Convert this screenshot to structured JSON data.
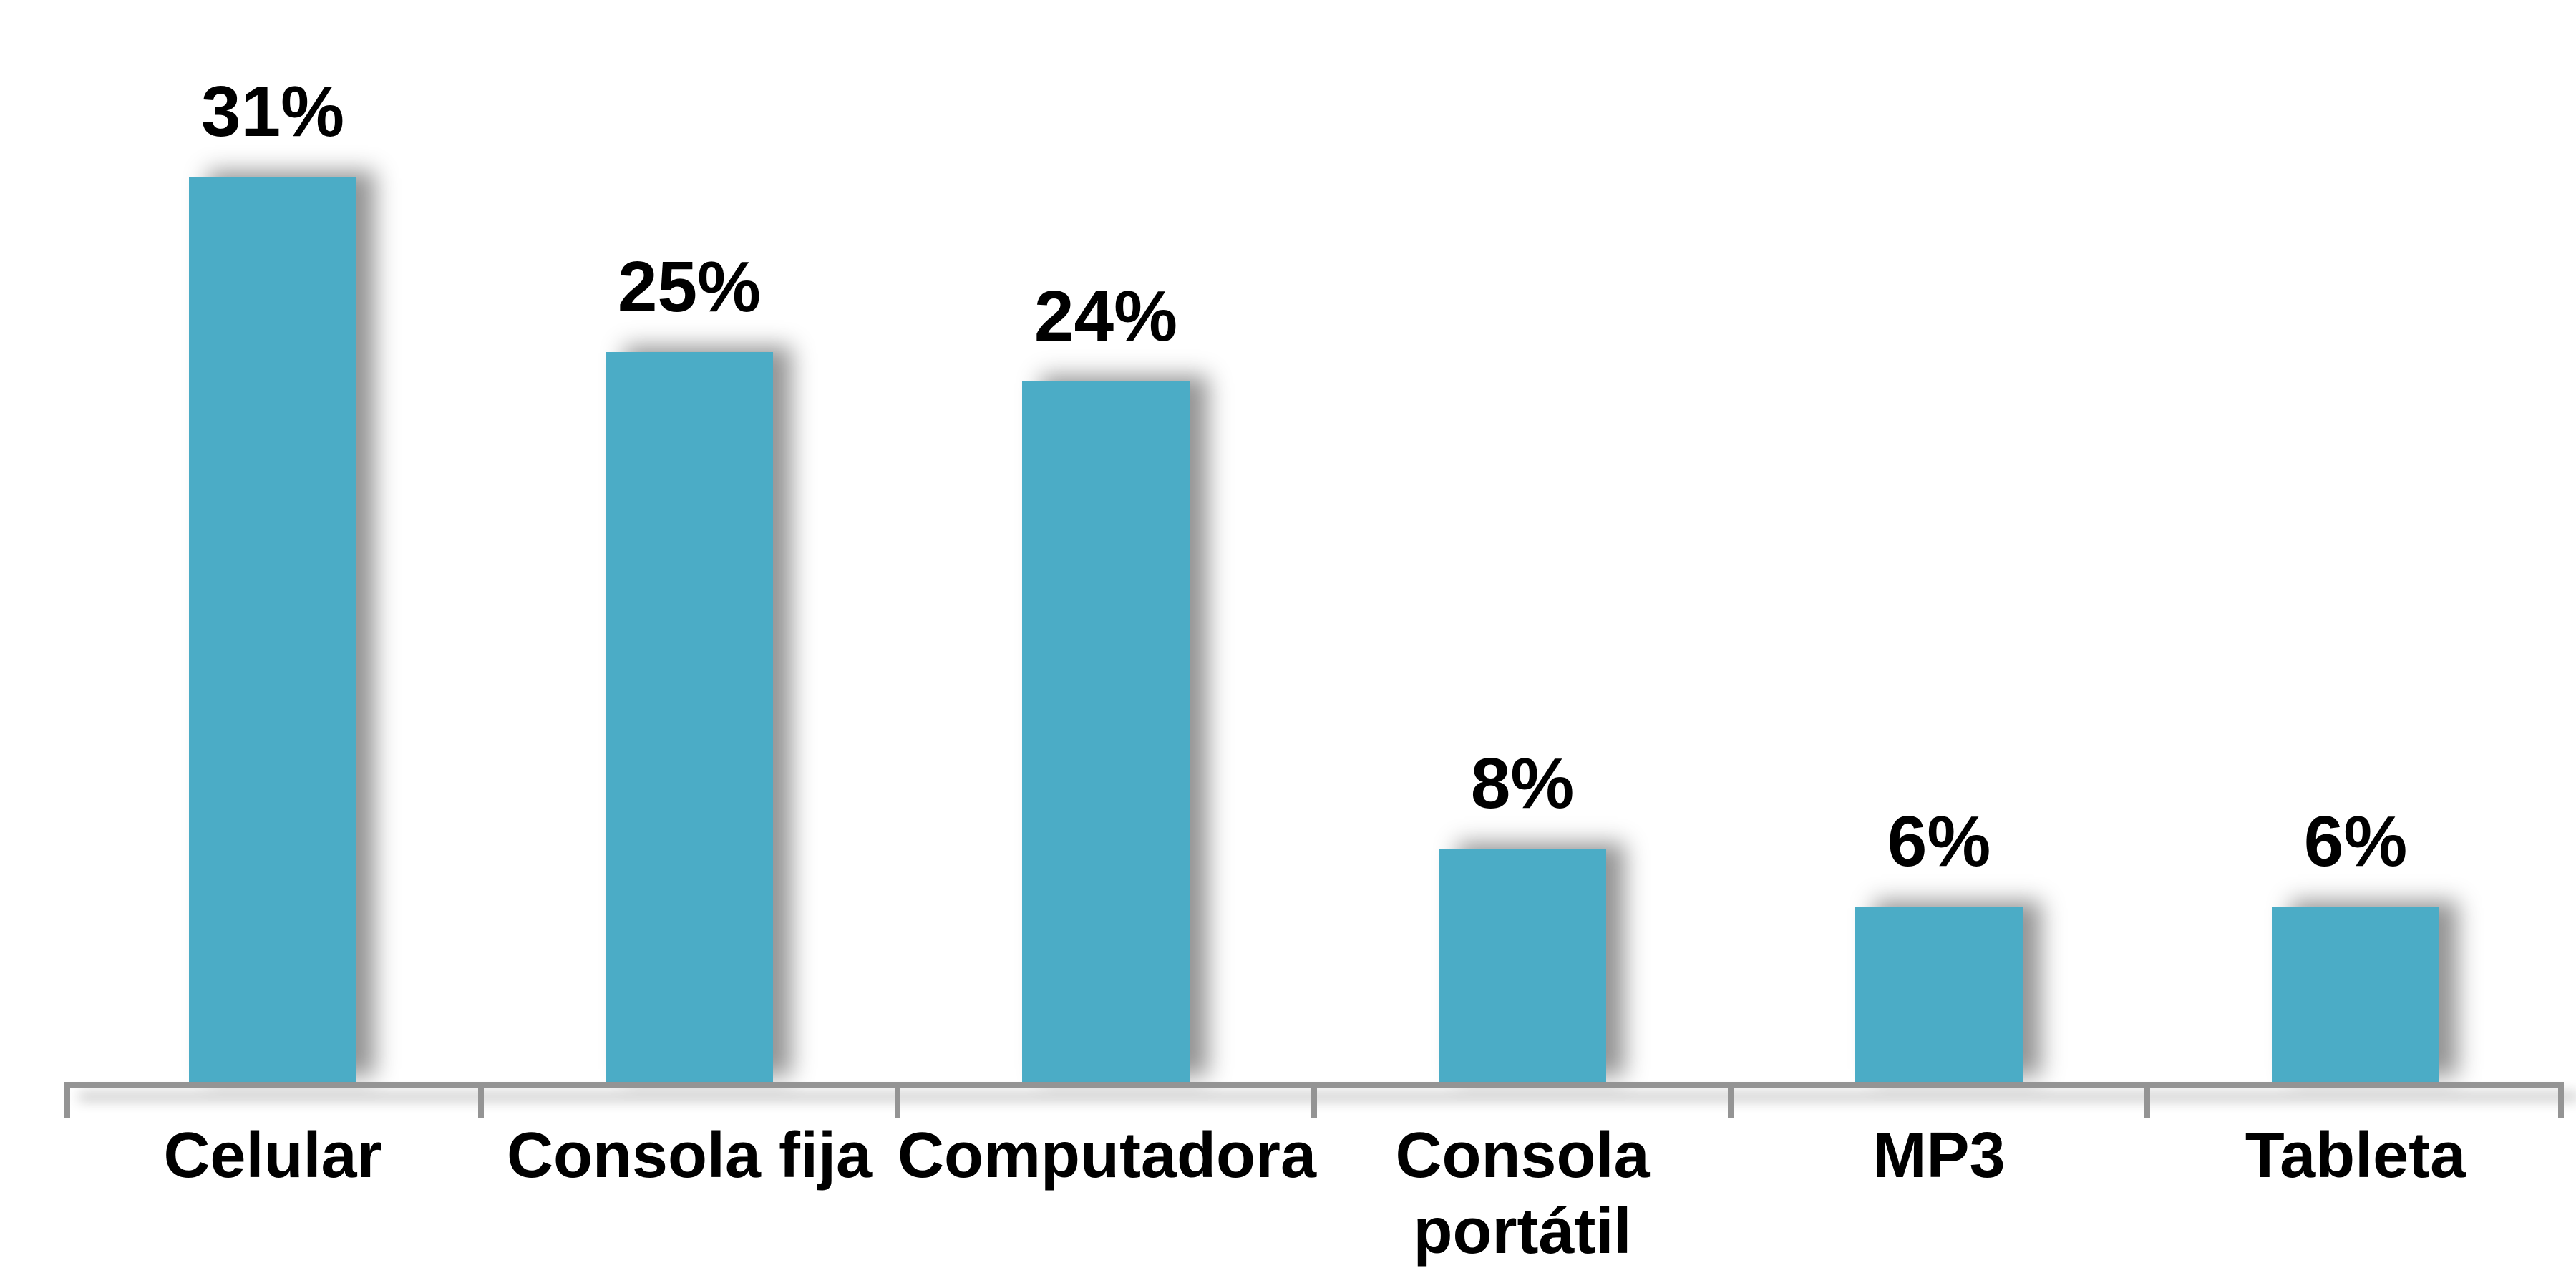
{
  "chart_data": {
    "type": "bar",
    "title": "",
    "xlabel": "",
    "ylabel": "",
    "unit": "%",
    "categories": [
      "Celular",
      "Consola fija",
      "Computadora",
      "Consola portátil",
      "MP3",
      "Tableta"
    ],
    "values": [
      31,
      25,
      24,
      8,
      6,
      6
    ],
    "value_labels": [
      "31%",
      "25%",
      "24%",
      "8%",
      "6%",
      "6%"
    ],
    "ylim": [
      0,
      35
    ],
    "grid": false,
    "legend": "none",
    "data_labels_position": "above-bar",
    "colors": {
      "bar": "#4bacc6",
      "axis": "#949494",
      "text": "#000000",
      "background": "#ffffff"
    }
  }
}
